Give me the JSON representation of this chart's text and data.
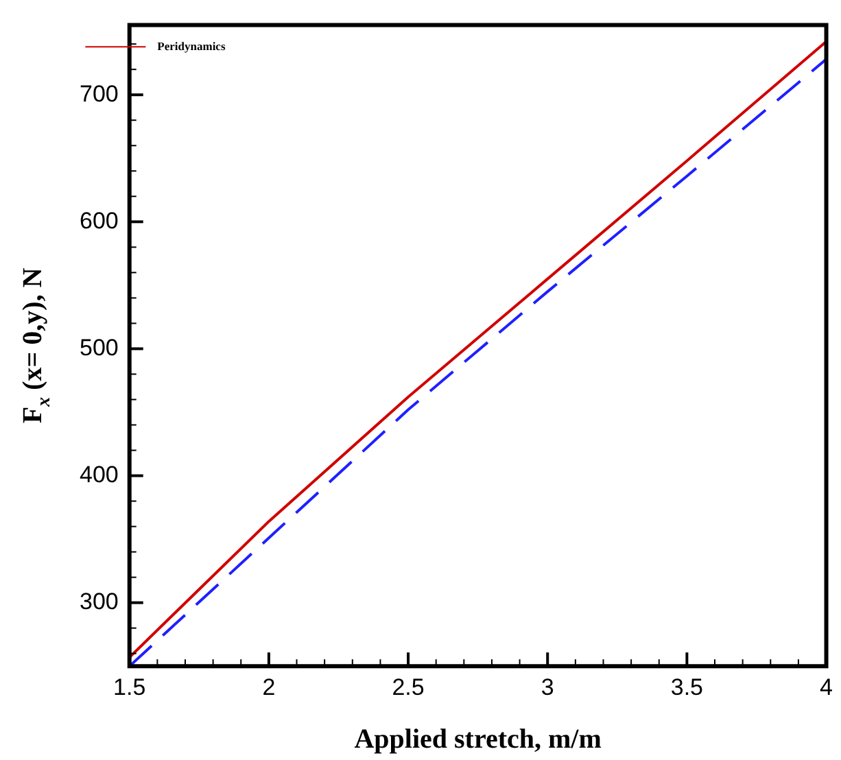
{
  "chart_data": {
    "type": "line",
    "xlabel": "Applied stretch, m/m",
    "ylabel": "F$_{x}$ (x= 0,y), N",
    "x": [
      1.5,
      2,
      2.5,
      3,
      3.5,
      4
    ],
    "series": [
      {
        "name": "Peridynamics",
        "color": "#d00000",
        "line_style": "solid",
        "values": [
          257,
          364,
          462,
          555,
          648,
          742
        ]
      },
      {
        "color": "#2020ff",
        "line_style": "dashed",
        "values": [
          250,
          351,
          452,
          545,
          636,
          728
        ]
      }
    ],
    "xlim": [
      1.5,
      4
    ],
    "xticks": [
      1.5,
      2,
      2.5,
      3,
      3.5,
      4
    ],
    "ylim": [
      250,
      755
    ],
    "yticks": [
      300,
      400,
      500,
      600,
      700
    ],
    "grid": false,
    "legend": "top left",
    "marker": "none"
  }
}
